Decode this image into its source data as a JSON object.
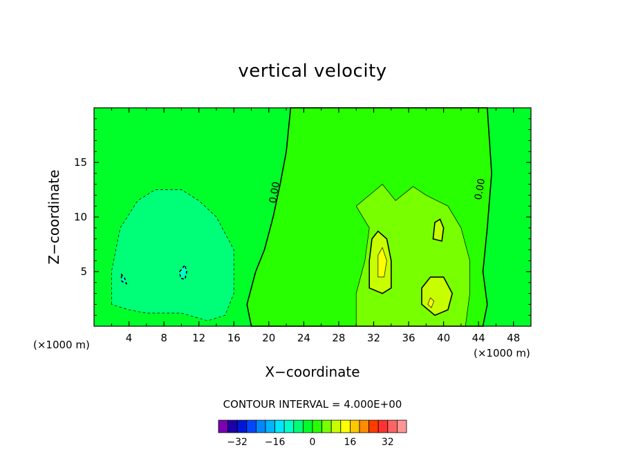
{
  "chart_data": {
    "type": "contour",
    "title": "vertical velocity",
    "xlabel": "X−coordinate",
    "ylabel": "Z−coordinate",
    "x_unit_label": "(×1000 m)",
    "xlim": [
      0,
      50
    ],
    "ylim": [
      0,
      20
    ],
    "x_ticks": [
      4,
      8,
      12,
      16,
      20,
      24,
      28,
      32,
      36,
      40,
      44,
      48
    ],
    "y_ticks": [
      5,
      10,
      15
    ],
    "zero_contour_label": "0.00",
    "contour_interval_text": "CONTOUR INTERVAL = 4.000E+00",
    "colorbar": {
      "colors": [
        "#7a00b4",
        "#1e00aa",
        "#0016d6",
        "#0048ff",
        "#0088ff",
        "#00b4ff",
        "#00e6ff",
        "#00ffc8",
        "#00ff78",
        "#00ff28",
        "#28ff00",
        "#78ff00",
        "#c8ff00",
        "#ffff00",
        "#ffc800",
        "#ff8c00",
        "#ff3c00",
        "#ff3232",
        "#ff6464",
        "#ff9696"
      ],
      "tick_labels": [
        "−32",
        "−16",
        "0",
        "16",
        "32"
      ],
      "tick_values": [
        -32,
        -16,
        0,
        16,
        32
      ]
    },
    "regions": [
      {
        "level": -4,
        "color": "#00ff78",
        "polygon": [
          [
            2,
            2
          ],
          [
            2,
            5
          ],
          [
            3,
            9
          ],
          [
            5,
            11.5
          ],
          [
            7,
            12.5
          ],
          [
            10,
            12.5
          ],
          [
            12,
            11.5
          ],
          [
            14,
            10
          ],
          [
            16,
            7
          ],
          [
            16,
            3
          ],
          [
            15,
            1
          ],
          [
            13,
            0.5
          ],
          [
            10,
            1.2
          ],
          [
            6,
            1.2
          ],
          [
            4,
            1.5
          ]
        ]
      },
      {
        "level": -8,
        "color": "#00ffc8",
        "polygon": [
          [
            3.1,
            4.8
          ],
          [
            3.5,
            4.4
          ],
          [
            3.7,
            3.9
          ],
          [
            3.2,
            4.1
          ]
        ]
      },
      {
        "level": -8,
        "color": "#00ffc8",
        "polygon": [
          [
            9.8,
            5
          ],
          [
            10.4,
            5.6
          ],
          [
            10.6,
            5
          ],
          [
            10.4,
            4.3
          ],
          [
            9.9,
            4.4
          ]
        ]
      },
      {
        "level": 0,
        "color": "#28ff00",
        "polygon": [
          [
            22.5,
            20
          ],
          [
            27,
            20
          ],
          [
            45,
            20
          ],
          [
            45.5,
            14
          ],
          [
            45,
            9
          ],
          [
            44.5,
            5
          ],
          [
            45,
            2
          ],
          [
            44.5,
            0
          ],
          [
            18,
            0
          ],
          [
            17.5,
            2
          ],
          [
            18.5,
            5
          ],
          [
            19.5,
            7
          ],
          [
            20.5,
            10
          ],
          [
            21.3,
            13
          ],
          [
            22,
            16
          ]
        ]
      },
      {
        "level": 4,
        "color": "#78ff00",
        "polygon": [
          [
            30,
            0
          ],
          [
            30,
            3
          ],
          [
            31,
            6
          ],
          [
            31.5,
            9
          ],
          [
            30,
            11
          ],
          [
            31.5,
            12
          ],
          [
            33,
            13
          ],
          [
            34.5,
            11.5
          ],
          [
            36.5,
            12.8
          ],
          [
            38,
            12
          ],
          [
            40.5,
            11
          ],
          [
            42,
            9
          ],
          [
            43,
            6
          ],
          [
            43,
            3
          ],
          [
            42.5,
            0
          ]
        ]
      },
      {
        "level": 8,
        "color": "#c8ff00",
        "polygon": [
          [
            31.5,
            3.5
          ],
          [
            31.5,
            6
          ],
          [
            31.8,
            8
          ],
          [
            32.5,
            8.7
          ],
          [
            33.5,
            8
          ],
          [
            34,
            6
          ],
          [
            34,
            3.5
          ],
          [
            33,
            3
          ]
        ]
      },
      {
        "level": 8,
        "color": "#c8ff00",
        "polygon": [
          [
            37.5,
            2
          ],
          [
            37.5,
            3.5
          ],
          [
            38.5,
            4.5
          ],
          [
            40,
            4.5
          ],
          [
            41,
            3
          ],
          [
            40.5,
            1.5
          ],
          [
            39,
            1
          ]
        ]
      },
      {
        "level": 8,
        "color": "#c8ff00",
        "polygon": [
          [
            38.8,
            8
          ],
          [
            39,
            9.5
          ],
          [
            39.6,
            9.8
          ],
          [
            40,
            9
          ],
          [
            39.8,
            7.8
          ]
        ]
      },
      {
        "level": 12,
        "color": "#ffff00",
        "polygon": [
          [
            32.5,
            4.5
          ],
          [
            32.5,
            6.5
          ],
          [
            33,
            7.2
          ],
          [
            33.5,
            6
          ],
          [
            33.2,
            4.5
          ]
        ]
      },
      {
        "level": 12,
        "color": "#ffff00",
        "polygon": [
          [
            38.2,
            2
          ],
          [
            38.5,
            2.6
          ],
          [
            38.9,
            2.3
          ],
          [
            38.6,
            1.7
          ]
        ]
      }
    ]
  }
}
